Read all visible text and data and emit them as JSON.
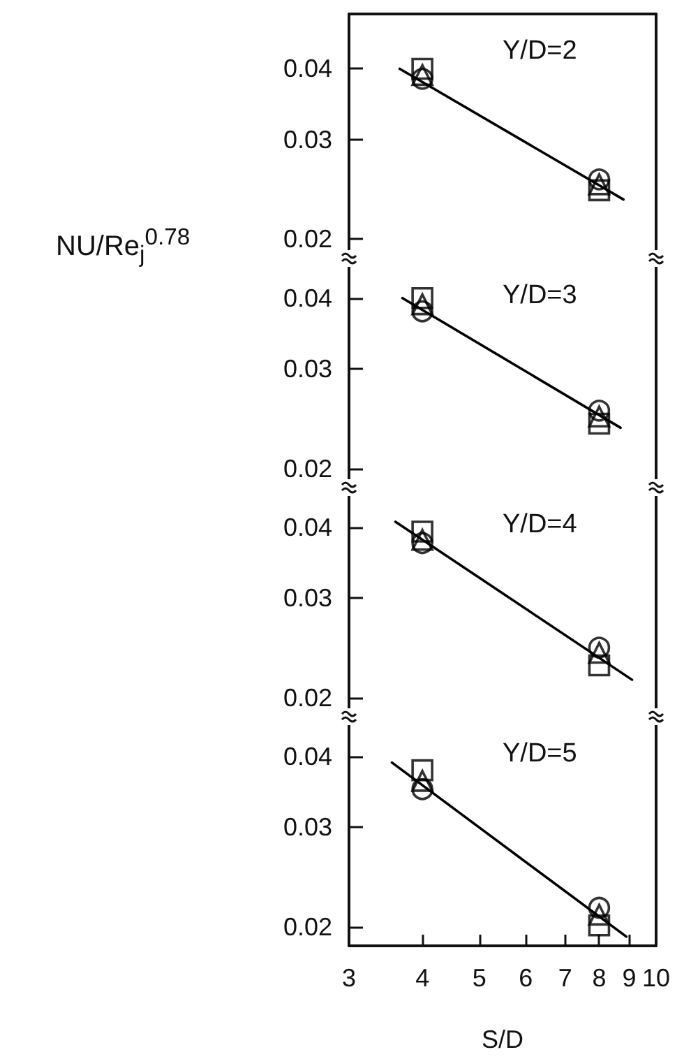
{
  "chart_data": [
    {
      "type": "scatter",
      "title": "Y/D=2",
      "xlim": [
        3,
        10
      ],
      "xticks": [
        3,
        4,
        5,
        6,
        7,
        8,
        9,
        10
      ],
      "ylim": [
        0.0185,
        0.05
      ],
      "yticks": [
        0.02,
        0.03,
        0.04
      ],
      "log": "xy",
      "tick_labels": "y",
      "series": [
        {
          "color": "#000000",
          "marker": "square",
          "x": [
            4,
            8
          ],
          "values": [
            0.04,
            0.0244
          ]
        },
        {
          "color": "#000000",
          "marker": "triangle",
          "x": [
            4,
            8
          ],
          "values": [
            0.039,
            0.025
          ]
        },
        {
          "color": "#000000",
          "marker": "circle",
          "x": [
            4,
            8
          ],
          "values": [
            0.0384,
            0.0255
          ]
        },
        {
          "type": "line",
          "color": "#000000",
          "marker": "none",
          "x": [
            3.66,
            8.8
          ],
          "values": [
            0.04,
            0.0235
          ]
        }
      ]
    },
    {
      "type": "scatter",
      "title": "Y/D=3",
      "ylabel": "NU/Re$_{j}$$^{0.78}$",
      "xlim": [
        3,
        10
      ],
      "xticks": [
        3,
        4,
        5,
        6,
        7,
        8,
        9,
        10
      ],
      "ylim": [
        0.0185,
        0.047
      ],
      "yticks": [
        0.02,
        0.03,
        0.04
      ],
      "log": "xy",
      "tick_labels": "y",
      "series": [
        {
          "color": "#000000",
          "marker": "square",
          "x": [
            4,
            8
          ],
          "values": [
            0.04,
            0.024
          ]
        },
        {
          "color": "#000000",
          "marker": "triangle",
          "x": [
            4,
            8
          ],
          "values": [
            0.039,
            0.0247
          ]
        },
        {
          "color": "#000000",
          "marker": "circle",
          "x": [
            4,
            8
          ],
          "values": [
            0.0379,
            0.0253
          ]
        },
        {
          "type": "line",
          "color": "#000000",
          "marker": "none",
          "x": [
            3.7,
            8.7
          ],
          "values": [
            0.04,
            0.0236
          ]
        }
      ]
    },
    {
      "type": "scatter",
      "title": "Y/D=4",
      "xlim": [
        3,
        10
      ],
      "xticks": [
        3,
        4,
        5,
        6,
        7,
        8,
        9,
        10
      ],
      "ylim": [
        0.0185,
        0.047
      ],
      "yticks": [
        0.02,
        0.03,
        0.04
      ],
      "log": "xy",
      "tick_labels": "y",
      "series": [
        {
          "color": "#000000",
          "marker": "square",
          "x": [
            4,
            8
          ],
          "values": [
            0.0393,
            0.0228
          ]
        },
        {
          "color": "#000000",
          "marker": "triangle",
          "x": [
            4,
            8
          ],
          "values": [
            0.038,
            0.024
          ]
        },
        {
          "color": "#000000",
          "marker": "circle",
          "x": [
            4,
            8
          ],
          "values": [
            0.0375,
            0.0245
          ]
        },
        {
          "type": "line",
          "color": "#000000",
          "marker": "none",
          "x": [
            3.6,
            9.1
          ],
          "values": [
            0.0409,
            0.0215
          ]
        }
      ]
    },
    {
      "type": "scatter",
      "title": "Y/D=5",
      "xlabel": "S/D",
      "xlim": [
        3,
        10
      ],
      "xticks": [
        3,
        4,
        5,
        6,
        7,
        8,
        9,
        10
      ],
      "ylim": [
        0.0185,
        0.047
      ],
      "yticks": [
        0.02,
        0.03,
        0.04
      ],
      "log": "xy",
      "series": [
        {
          "color": "#000000",
          "marker": "square",
          "x": [
            4,
            8
          ],
          "values": [
            0.0378,
            0.0201
          ]
        },
        {
          "color": "#000000",
          "marker": "triangle",
          "x": [
            4,
            8
          ],
          "values": [
            0.0362,
            0.021
          ]
        },
        {
          "color": "#000000",
          "marker": "circle",
          "x": [
            4,
            8
          ],
          "values": [
            0.035,
            0.0216
          ]
        },
        {
          "type": "line",
          "color": "#000000",
          "marker": "none",
          "x": [
            3.55,
            8.9
          ],
          "values": [
            0.039,
            0.0192
          ]
        }
      ]
    }
  ]
}
